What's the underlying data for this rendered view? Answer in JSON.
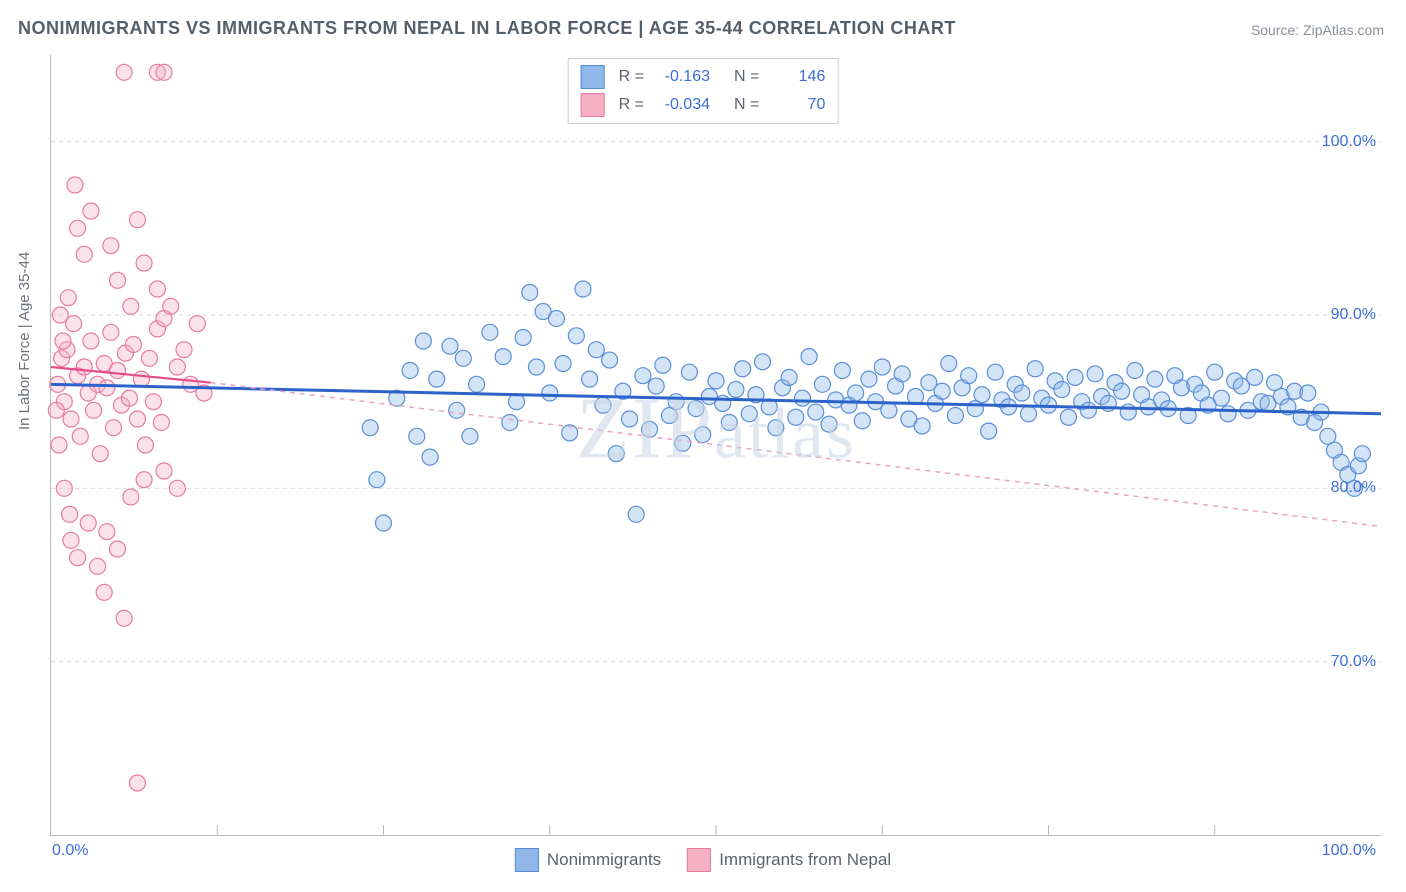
{
  "title": "NONIMMIGRANTS VS IMMIGRANTS FROM NEPAL IN LABOR FORCE | AGE 35-44 CORRELATION CHART",
  "source": "Source: ZipAtlas.com",
  "watermark": "ZIPatlas",
  "chart": {
    "type": "scatter",
    "background_color": "#ffffff",
    "grid_color": "#d7dbe0",
    "axis_color": "#b7bcc3",
    "tick_label_color": "#3c6fd6",
    "y_axis_label": "In Labor Force | Age 35-44",
    "xlim": [
      0,
      100
    ],
    "ylim": [
      60,
      105
    ],
    "x_ticks": [
      0,
      100
    ],
    "x_tick_labels": [
      "0.0%",
      "100.0%"
    ],
    "x_minor_ticks": [
      12.5,
      25,
      37.5,
      50,
      62.5,
      75,
      87.5
    ],
    "y_ticks": [
      70,
      80,
      90,
      100
    ],
    "y_tick_labels": [
      "70.0%",
      "80.0%",
      "90.0%",
      "100.0%"
    ],
    "marker_radius": 8,
    "marker_stroke_width": 1.2,
    "marker_fill_opacity": 0.38,
    "series": [
      {
        "name": "Nonimmigrants",
        "color_fill": "#8fb7ea",
        "color_stroke": "#5a8fd6",
        "R": "-0.163",
        "N": "146",
        "trend": {
          "x1": 0,
          "y1": 86.0,
          "x2": 100,
          "y2": 84.3,
          "color": "#2b63c9",
          "width": 3,
          "dash": ""
        },
        "points": [
          [
            24,
            83.5
          ],
          [
            24.5,
            80.5
          ],
          [
            25,
            78.0
          ],
          [
            26,
            85.2
          ],
          [
            27,
            86.8
          ],
          [
            27.5,
            83.0
          ],
          [
            28,
            88.5
          ],
          [
            28.5,
            81.8
          ],
          [
            29,
            86.3
          ],
          [
            30,
            88.2
          ],
          [
            30.5,
            84.5
          ],
          [
            31,
            87.5
          ],
          [
            31.5,
            83.0
          ],
          [
            32,
            86.0
          ],
          [
            33,
            89.0
          ],
          [
            34,
            87.6
          ],
          [
            34.5,
            83.8
          ],
          [
            35,
            85.0
          ],
          [
            35.5,
            88.7
          ],
          [
            36,
            91.3
          ],
          [
            36.5,
            87.0
          ],
          [
            37,
            90.2
          ],
          [
            37.5,
            85.5
          ],
          [
            38,
            89.8
          ],
          [
            38.5,
            87.2
          ],
          [
            39,
            83.2
          ],
          [
            39.5,
            88.8
          ],
          [
            40,
            91.5
          ],
          [
            40.5,
            86.3
          ],
          [
            41,
            88.0
          ],
          [
            41.5,
            84.8
          ],
          [
            42,
            87.4
          ],
          [
            42.5,
            82.0
          ],
          [
            43,
            85.6
          ],
          [
            43.5,
            84.0
          ],
          [
            44,
            78.5
          ],
          [
            44.5,
            86.5
          ],
          [
            45,
            83.4
          ],
          [
            45.5,
            85.9
          ],
          [
            46,
            87.1
          ],
          [
            46.5,
            84.2
          ],
          [
            47,
            85.0
          ],
          [
            47.5,
            82.6
          ],
          [
            48,
            86.7
          ],
          [
            48.5,
            84.6
          ],
          [
            49,
            83.1
          ],
          [
            49.5,
            85.3
          ],
          [
            50,
            86.2
          ],
          [
            50.5,
            84.9
          ],
          [
            51,
            83.8
          ],
          [
            51.5,
            85.7
          ],
          [
            52,
            86.9
          ],
          [
            52.5,
            84.3
          ],
          [
            53,
            85.4
          ],
          [
            53.5,
            87.3
          ],
          [
            54,
            84.7
          ],
          [
            54.5,
            83.5
          ],
          [
            55,
            85.8
          ],
          [
            55.5,
            86.4
          ],
          [
            56,
            84.1
          ],
          [
            56.5,
            85.2
          ],
          [
            57,
            87.6
          ],
          [
            57.5,
            84.4
          ],
          [
            58,
            86.0
          ],
          [
            58.5,
            83.7
          ],
          [
            59,
            85.1
          ],
          [
            59.5,
            86.8
          ],
          [
            60,
            84.8
          ],
          [
            60.5,
            85.5
          ],
          [
            61,
            83.9
          ],
          [
            61.5,
            86.3
          ],
          [
            62,
            85.0
          ],
          [
            62.5,
            87.0
          ],
          [
            63,
            84.5
          ],
          [
            63.5,
            85.9
          ],
          [
            64,
            86.6
          ],
          [
            64.5,
            84.0
          ],
          [
            65,
            85.3
          ],
          [
            65.5,
            83.6
          ],
          [
            66,
            86.1
          ],
          [
            66.5,
            84.9
          ],
          [
            67,
            85.6
          ],
          [
            67.5,
            87.2
          ],
          [
            68,
            84.2
          ],
          [
            68.5,
            85.8
          ],
          [
            69,
            86.5
          ],
          [
            69.5,
            84.6
          ],
          [
            70,
            85.4
          ],
          [
            70.5,
            83.3
          ],
          [
            71,
            86.7
          ],
          [
            71.5,
            85.1
          ],
          [
            72,
            84.7
          ],
          [
            72.5,
            86.0
          ],
          [
            73,
            85.5
          ],
          [
            73.5,
            84.3
          ],
          [
            74,
            86.9
          ],
          [
            74.5,
            85.2
          ],
          [
            75,
            84.8
          ],
          [
            75.5,
            86.2
          ],
          [
            76,
            85.7
          ],
          [
            76.5,
            84.1
          ],
          [
            77,
            86.4
          ],
          [
            77.5,
            85.0
          ],
          [
            78,
            84.5
          ],
          [
            78.5,
            86.6
          ],
          [
            79,
            85.3
          ],
          [
            79.5,
            84.9
          ],
          [
            80,
            86.1
          ],
          [
            80.5,
            85.6
          ],
          [
            81,
            84.4
          ],
          [
            81.5,
            86.8
          ],
          [
            82,
            85.4
          ],
          [
            82.5,
            84.7
          ],
          [
            83,
            86.3
          ],
          [
            83.5,
            85.1
          ],
          [
            84,
            84.6
          ],
          [
            84.5,
            86.5
          ],
          [
            85,
            85.8
          ],
          [
            85.5,
            84.2
          ],
          [
            86,
            86.0
          ],
          [
            86.5,
            85.5
          ],
          [
            87,
            84.8
          ],
          [
            87.5,
            86.7
          ],
          [
            88,
            85.2
          ],
          [
            88.5,
            84.3
          ],
          [
            89,
            86.2
          ],
          [
            89.5,
            85.9
          ],
          [
            90,
            84.5
          ],
          [
            90.5,
            86.4
          ],
          [
            91,
            85.0
          ],
          [
            91.5,
            84.9
          ],
          [
            92,
            86.1
          ],
          [
            92.5,
            85.3
          ],
          [
            93,
            84.7
          ],
          [
            93.5,
            85.6
          ],
          [
            94,
            84.1
          ],
          [
            94.5,
            85.5
          ],
          [
            95,
            83.8
          ],
          [
            95.5,
            84.4
          ],
          [
            96,
            83.0
          ],
          [
            96.5,
            82.2
          ],
          [
            97,
            81.5
          ],
          [
            97.5,
            80.8
          ],
          [
            98,
            80.0
          ],
          [
            98.3,
            81.3
          ],
          [
            98.6,
            82.0
          ]
        ]
      },
      {
        "name": "Immigrants from Nepal",
        "color_fill": "#f5b0c4",
        "color_stroke": "#e77aa0",
        "R": "-0.034",
        "N": "70",
        "trend_solid": {
          "x1": 0,
          "y1": 87.0,
          "x2": 12,
          "y2": 86.1,
          "color": "#e24e87",
          "width": 2.2
        },
        "trend_dash": {
          "x1": 12,
          "y1": 86.1,
          "x2": 100,
          "y2": 77.8,
          "color": "#e9a4bd",
          "width": 1.5,
          "dash": "5 5"
        },
        "points": [
          [
            0.5,
            86.0
          ],
          [
            0.8,
            87.5
          ],
          [
            1.0,
            85.0
          ],
          [
            1.2,
            88.0
          ],
          [
            1.5,
            84.0
          ],
          [
            1.7,
            89.5
          ],
          [
            2.0,
            86.5
          ],
          [
            2.2,
            83.0
          ],
          [
            2.5,
            87.0
          ],
          [
            2.8,
            85.5
          ],
          [
            3.0,
            88.5
          ],
          [
            3.2,
            84.5
          ],
          [
            3.5,
            86.0
          ],
          [
            3.7,
            82.0
          ],
          [
            4.0,
            87.2
          ],
          [
            4.2,
            85.8
          ],
          [
            4.5,
            89.0
          ],
          [
            4.7,
            83.5
          ],
          [
            5.0,
            86.8
          ],
          [
            5.3,
            84.8
          ],
          [
            5.6,
            87.8
          ],
          [
            5.9,
            85.2
          ],
          [
            6.2,
            88.3
          ],
          [
            6.5,
            84.0
          ],
          [
            6.8,
            86.3
          ],
          [
            7.1,
            82.5
          ],
          [
            7.4,
            87.5
          ],
          [
            7.7,
            85.0
          ],
          [
            8.0,
            89.2
          ],
          [
            8.3,
            83.8
          ],
          [
            2.0,
            95.0
          ],
          [
            2.5,
            93.5
          ],
          [
            3.0,
            96.0
          ],
          [
            1.8,
            97.5
          ],
          [
            4.5,
            94.0
          ],
          [
            5.0,
            92.0
          ],
          [
            6.0,
            90.5
          ],
          [
            7.0,
            93.0
          ],
          [
            8.0,
            91.5
          ],
          [
            6.5,
            95.5
          ],
          [
            8.0,
            104.0
          ],
          [
            8.5,
            104.0
          ],
          [
            5.5,
            104.0
          ],
          [
            8.5,
            89.8
          ],
          [
            9.0,
            90.5
          ],
          [
            9.5,
            87.0
          ],
          [
            10.0,
            88.0
          ],
          [
            10.5,
            86.0
          ],
          [
            11.0,
            89.5
          ],
          [
            11.5,
            85.5
          ],
          [
            1.5,
            77.0
          ],
          [
            2.0,
            76.0
          ],
          [
            2.8,
            78.0
          ],
          [
            3.5,
            75.5
          ],
          [
            4.2,
            77.5
          ],
          [
            5.0,
            76.5
          ],
          [
            6.0,
            79.5
          ],
          [
            7.0,
            80.5
          ],
          [
            8.5,
            81.0
          ],
          [
            9.5,
            80.0
          ],
          [
            4.0,
            74.0
          ],
          [
            5.5,
            72.5
          ],
          [
            6.5,
            63.0
          ],
          [
            0.7,
            90.0
          ],
          [
            1.3,
            91.0
          ],
          [
            0.4,
            84.5
          ],
          [
            0.6,
            82.5
          ],
          [
            1.0,
            80.0
          ],
          [
            1.4,
            78.5
          ],
          [
            0.9,
            88.5
          ]
        ]
      }
    ]
  },
  "top_legend": {
    "rows": [
      {
        "swatch_fill": "#8fb7ea",
        "swatch_stroke": "#5a8fd6",
        "r_label": "R =",
        "r_value": "-0.163",
        "n_label": "N =",
        "n_value": "146"
      },
      {
        "swatch_fill": "#f5b0c4",
        "swatch_stroke": "#e77aa0",
        "r_label": "R =",
        "r_value": "-0.034",
        "n_label": "N =",
        "n_value": "70"
      }
    ]
  },
  "bottom_legend": {
    "items": [
      {
        "swatch_fill": "#8fb7ea",
        "swatch_stroke": "#5a8fd6",
        "label": "Nonimmigrants"
      },
      {
        "swatch_fill": "#f5b0c4",
        "swatch_stroke": "#e77aa0",
        "label": "Immigrants from Nepal"
      }
    ]
  }
}
